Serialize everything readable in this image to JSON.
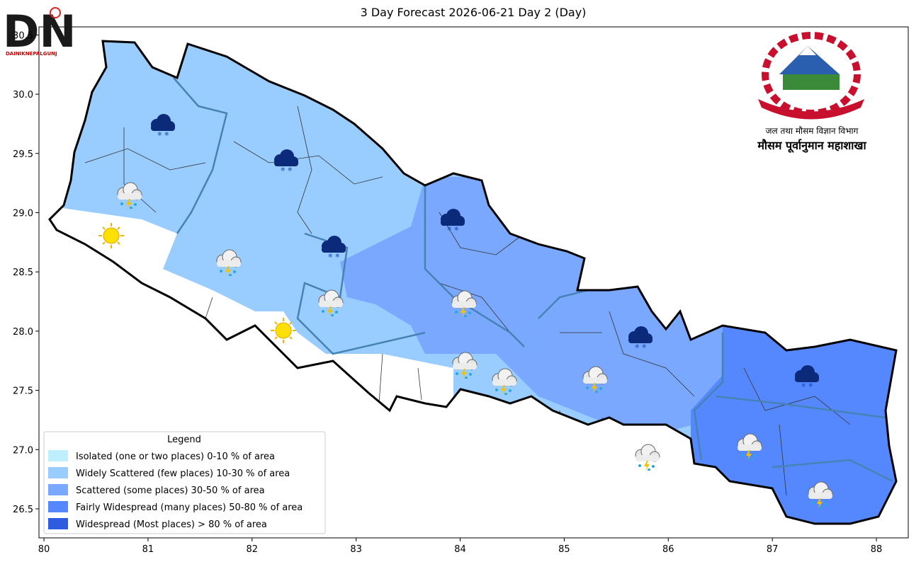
{
  "title": "3 Day Forecast 2026-06-21 Day 2 (Day)",
  "logo": {
    "text": "DAINIKNEPALGUNJ"
  },
  "emblem": {
    "department": "जल तथा मौसम विज्ञान विभाग",
    "division": "मौसम पूर्वानुमान महाशाखा"
  },
  "map": {
    "xlim": [
      79.952,
      88.306
    ],
    "ylim": [
      26.255,
      30.568
    ],
    "xticks": [
      80,
      81,
      82,
      83,
      84,
      85,
      86,
      87,
      88
    ],
    "yticks": [
      26.5,
      {
        "value": 27,
        "label": "27.0"
      },
      27.5,
      {
        "value": 28,
        "label": "28.0"
      },
      28.5,
      {
        "value": 29,
        "label": "29.0"
      },
      29.5,
      {
        "value": 30,
        "label": "30.0"
      },
      30.5
    ]
  },
  "legend": {
    "title": "Legend",
    "items": [
      {
        "label": "Isolated (one or two places)  0-10 % of area",
        "color": "#bdefff"
      },
      {
        "label": "Widely Scattered (few places)  10-30 % of area",
        "color": "#99ccff"
      },
      {
        "label": "Scattered (some places)  30-50 % of area",
        "color": "#7aa8ff"
      },
      {
        "label": "Fairly Widespread (many places)  50-80 % of area",
        "color": "#5588ff"
      },
      {
        "label": "Widespread (Most places) > 80 % of area",
        "color": "#2f5be0"
      }
    ]
  }
}
